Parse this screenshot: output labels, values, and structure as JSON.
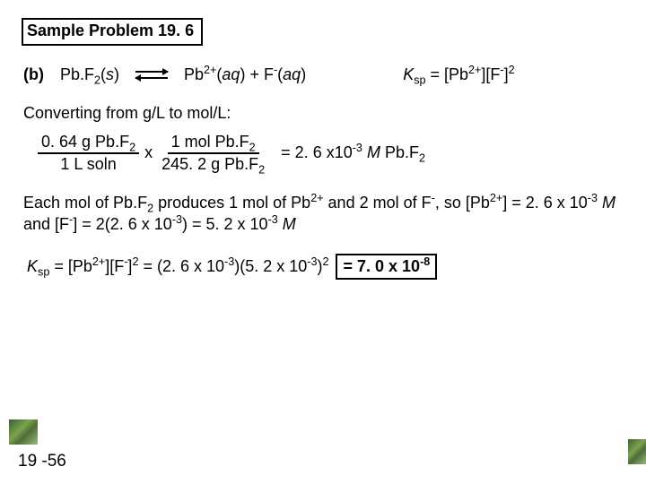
{
  "title": "Sample Problem 19. 6",
  "part": "(b)",
  "reactant_base": "Pb.F",
  "reactant_sub": "2",
  "reactant_state": "s",
  "prod1_base": "Pb",
  "prod1_sup": "2+",
  "prod1_state": "aq",
  "plus": " + ",
  "prod2_base": "F",
  "prod2_sup": "-",
  "prod2_state": "aq",
  "ksp_label_K": "K",
  "ksp_label_sp": "sp",
  "ksp_eq": " = [Pb",
  "ksp_eq2": "][F",
  "ksp_eq3": "]",
  "ksp_power": "2",
  "convert": "Converting from g/L to mol/L:",
  "frac1_num": "0. 64 g Pb.F",
  "frac1_num_sub": "2",
  "frac1_den": "1 L soln",
  "times": "x",
  "frac2_num": "1 mol Pb.F",
  "frac2_num_sub": "2",
  "frac2_den": "245. 2 g Pb.F",
  "frac2_den_sub": "2",
  "calc_result_a": "= 2. 6 x10",
  "calc_result_sup": "-3",
  "calc_result_b": " ",
  "calc_result_M": "M",
  "calc_result_c": " Pb.F",
  "calc_result_sub": "2",
  "para1": "Each mol of Pb.F",
  "para1b": " produces 1 mol of Pb",
  "para1c": " and 2 mol of F",
  "para1d": ", so [Pb",
  "para1e": "] = 2. 6 x 10",
  "para1f": " ",
  "para1g": " and [F",
  "para1h": "] = 2(2. 6 x 10",
  "para1i": ") = 5. 2 x 10",
  "final_a1": " = [Pb",
  "final_a2": "][F",
  "final_a3": "]",
  "final_b": " = (2. 6 x 10",
  "final_c": ")(5. 2 x 10",
  "final_d": ")",
  "final_sup2": "2",
  "result": "= 7. 0 x 10",
  "result_sup": "-8",
  "page": "19 -56"
}
